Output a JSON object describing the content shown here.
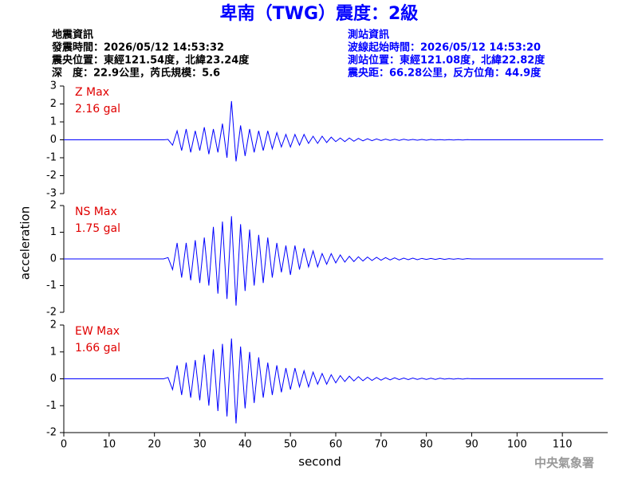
{
  "header": {
    "title": "卑南（TWG）震度：2級",
    "left": [
      "地震資訊",
      "發震時間：2026/05/12 14:53:32",
      "震央位置：東經121.54度，北緯23.24度",
      "深　度：22.9公里，芮氏規模：5.6"
    ],
    "right": [
      "測站資訊",
      "波線起始時間：2026/05/12 14:53:20",
      "測站位置：東經121.08度，北緯22.82度",
      "震央距：66.28公里，反方位角：44.9度"
    ],
    "footer": "中央氣象署"
  },
  "chart_data": [
    {
      "type": "line",
      "annotations": [
        "Z Max",
        "2.16 gal"
      ],
      "color": "#0000ff",
      "x": [
        0,
        22,
        23,
        24,
        25,
        26,
        27,
        28,
        29,
        30,
        31,
        32,
        33,
        34,
        35,
        36,
        37,
        38,
        39,
        40,
        41,
        42,
        43,
        44,
        45,
        46,
        47,
        48,
        49,
        50,
        51,
        52,
        53,
        54,
        55,
        56,
        57,
        58,
        59,
        60,
        61,
        62,
        63,
        64,
        65,
        66,
        67,
        68,
        69,
        70,
        71,
        72,
        73,
        74,
        75,
        76,
        77,
        78,
        79,
        80,
        81,
        82,
        83,
        84,
        85,
        86,
        87,
        88,
        89,
        90,
        119
      ],
      "values": [
        0,
        0,
        0.02,
        -0.3,
        0.5,
        -0.6,
        0.6,
        -0.7,
        0.5,
        -0.6,
        0.7,
        -0.8,
        0.6,
        -0.7,
        0.9,
        -1.0,
        2.16,
        -1.2,
        0.8,
        -0.9,
        0.6,
        -0.7,
        0.5,
        -0.6,
        0.5,
        -0.5,
        0.4,
        -0.4,
        0.3,
        -0.4,
        0.3,
        -0.3,
        0.3,
        -0.2,
        0.2,
        -0.2,
        0.2,
        -0.15,
        0.15,
        -0.1,
        0.1,
        -0.1,
        0.1,
        -0.08,
        0.08,
        -0.06,
        0.06,
        -0.05,
        0.05,
        -0.04,
        0.04,
        -0.03,
        0.03,
        -0.03,
        0.03,
        -0.02,
        0.02,
        -0.02,
        0.02,
        -0.02,
        0.02,
        -0.01,
        0.01,
        -0.01,
        0.01,
        -0.01,
        0.01,
        -0.01,
        0.01,
        0,
        0
      ],
      "xlim": [
        0,
        120
      ],
      "ylim": [
        -3,
        3
      ],
      "yticks": [
        -3,
        -2,
        -1,
        0,
        1,
        2,
        3
      ]
    },
    {
      "type": "line",
      "annotations": [
        "NS Max",
        "1.75 gal"
      ],
      "color": "#0000ff",
      "ylabel": "acceleration",
      "x": [
        0,
        22,
        23,
        24,
        25,
        26,
        27,
        28,
        29,
        30,
        31,
        32,
        33,
        34,
        35,
        36,
        37,
        38,
        39,
        40,
        41,
        42,
        43,
        44,
        45,
        46,
        47,
        48,
        49,
        50,
        51,
        52,
        53,
        54,
        55,
        56,
        57,
        58,
        59,
        60,
        61,
        62,
        63,
        64,
        65,
        66,
        67,
        68,
        69,
        70,
        71,
        72,
        73,
        74,
        75,
        76,
        77,
        78,
        79,
        80,
        81,
        82,
        83,
        84,
        85,
        86,
        87,
        88,
        89,
        90,
        119
      ],
      "values": [
        0,
        0,
        0.05,
        -0.4,
        0.6,
        -0.7,
        0.6,
        -0.8,
        0.7,
        -0.9,
        0.8,
        -1.0,
        1.2,
        -1.3,
        1.4,
        -1.5,
        1.6,
        -1.75,
        1.3,
        -1.2,
        1.1,
        -1.0,
        0.9,
        -0.9,
        0.8,
        -0.7,
        0.6,
        -0.5,
        0.5,
        -0.6,
        0.5,
        -0.4,
        0.4,
        -0.3,
        0.3,
        -0.3,
        0.2,
        -0.2,
        0.2,
        -0.15,
        0.15,
        -0.12,
        0.1,
        -0.1,
        0.08,
        -0.08,
        0.07,
        -0.06,
        0.06,
        -0.05,
        0.05,
        -0.04,
        0.04,
        -0.04,
        0.03,
        -0.03,
        0.03,
        -0.03,
        0.02,
        -0.02,
        0.02,
        -0.02,
        0.02,
        -0.02,
        0.01,
        -0.01,
        0.01,
        -0.01,
        0.01,
        0,
        0
      ],
      "xlim": [
        0,
        120
      ],
      "ylim": [
        -2,
        2
      ],
      "yticks": [
        -2,
        -1,
        0,
        1,
        2
      ]
    },
    {
      "type": "line",
      "annotations": [
        "EW Max",
        "1.66 gal"
      ],
      "color": "#0000ff",
      "xlabel": "second",
      "x": [
        0,
        22,
        23,
        24,
        25,
        26,
        27,
        28,
        29,
        30,
        31,
        32,
        33,
        34,
        35,
        36,
        37,
        38,
        39,
        40,
        41,
        42,
        43,
        44,
        45,
        46,
        47,
        48,
        49,
        50,
        51,
        52,
        53,
        54,
        55,
        56,
        57,
        58,
        59,
        60,
        61,
        62,
        63,
        64,
        65,
        66,
        67,
        68,
        69,
        70,
        71,
        72,
        73,
        74,
        75,
        76,
        77,
        78,
        79,
        80,
        81,
        82,
        83,
        84,
        85,
        86,
        87,
        88,
        89,
        90,
        119
      ],
      "values": [
        0,
        0,
        0.05,
        -0.4,
        0.5,
        -0.6,
        0.6,
        -0.7,
        0.7,
        -0.8,
        0.9,
        -1.0,
        1.1,
        -1.2,
        1.3,
        -1.4,
        1.5,
        -1.66,
        1.2,
        -1.1,
        1.0,
        -0.9,
        0.8,
        -0.7,
        0.6,
        -0.6,
        0.5,
        -0.5,
        0.4,
        -0.4,
        0.4,
        -0.3,
        0.3,
        -0.3,
        0.25,
        -0.2,
        0.2,
        -0.2,
        0.15,
        -0.15,
        0.12,
        -0.1,
        0.1,
        -0.08,
        0.08,
        -0.07,
        0.06,
        -0.06,
        0.05,
        -0.05,
        0.04,
        -0.04,
        0.04,
        -0.03,
        0.03,
        -0.03,
        0.03,
        -0.02,
        0.02,
        -0.02,
        0.02,
        -0.02,
        0.02,
        -0.01,
        0.01,
        -0.01,
        0.01,
        -0.01,
        0.01,
        0,
        0
      ],
      "xlim": [
        0,
        120
      ],
      "ylim": [
        -2,
        2
      ],
      "yticks": [
        -2,
        -1,
        0,
        1,
        2
      ],
      "xticks": [
        0,
        10,
        20,
        30,
        40,
        50,
        60,
        70,
        80,
        90,
        100,
        110
      ]
    }
  ]
}
